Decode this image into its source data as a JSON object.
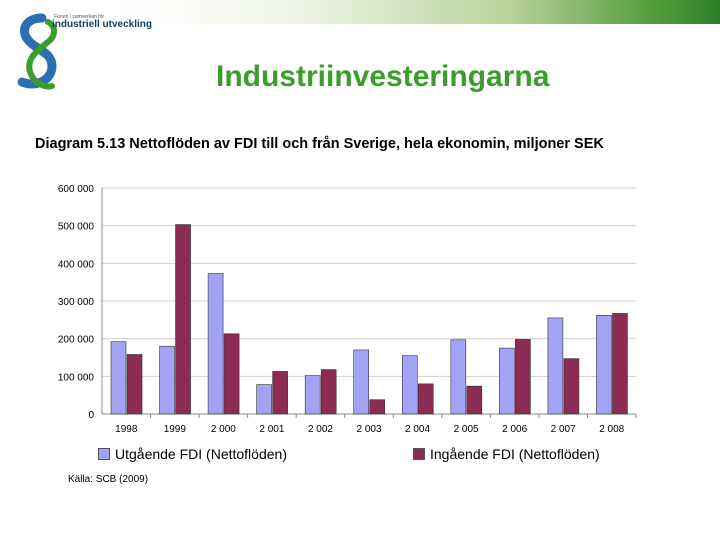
{
  "header": {
    "logo_small_text": "Forum i samverkan för",
    "logo_name": "industriell utveckling",
    "slide_title": "Industriinvesteringarna"
  },
  "colors": {
    "title_green": "#3a9e2b",
    "series1": "#a3a3f5",
    "series2": "#8c2c55",
    "grid": "#d0d0d0"
  },
  "chart_data": {
    "type": "bar",
    "title": "Diagram 5.13 Nettoflöden av FDI till och från Sverige, hela ekonomin, miljoner SEK",
    "categories": [
      "1998",
      "1999",
      "2 000",
      "2 001",
      "2 002",
      "2 003",
      "2 004",
      "2 005",
      "2 006",
      "2 007",
      "2 008"
    ],
    "series": [
      {
        "name": "Utgående FDI (Nettoflöden)",
        "values": [
          192000,
          180000,
          373000,
          78000,
          102000,
          170000,
          155000,
          197000,
          175000,
          255000,
          262000
        ]
      },
      {
        "name": "Ingående FDI (Nettoflöden)",
        "values": [
          158000,
          503000,
          213000,
          113000,
          118000,
          38000,
          80000,
          74000,
          198000,
          147000,
          267000
        ]
      }
    ],
    "yticks": [
      0,
      100000,
      200000,
      300000,
      400000,
      500000,
      600000
    ],
    "ytick_labels": [
      "0",
      "100 000",
      "200 000",
      "300 000",
      "400 000",
      "500 000",
      "600 000"
    ],
    "ylim": [
      0,
      600000
    ],
    "grid": true,
    "legend": "bottom"
  },
  "source": "Källa: SCB (2009)"
}
